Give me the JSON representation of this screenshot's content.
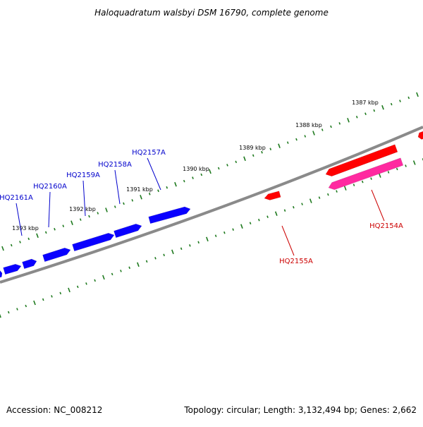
{
  "title": "Haloquadratum walsbyi DSM 16790, complete genome",
  "footer": {
    "accession": "Accession: NC_008212",
    "summary": "Topology: circular; Length: 3,132,494 bp; Genes: 2,662"
  },
  "colors": {
    "backbone": "#8a8a8a",
    "tick": "#1f7a1f",
    "forward_gene": "#0a00ff",
    "reverse_gene": "#ff0000",
    "reverse_feature": "#ff2aa0",
    "forward_label": "#0000cc",
    "reverse_label": "#cc0000"
  },
  "scale_labels": [
    "1387 kbp",
    "1388 kbp",
    "1389 kbp",
    "1390 kbp",
    "1391 kbp",
    "1392 kbp",
    "1393 kbp"
  ],
  "forward_gene_labels": [
    "HQ2157A",
    "HQ2158A",
    "HQ2159A",
    "HQ2160A",
    "HQ2161A"
  ],
  "reverse_gene_labels": [
    "HQ2154A",
    "HQ2155A"
  ]
}
